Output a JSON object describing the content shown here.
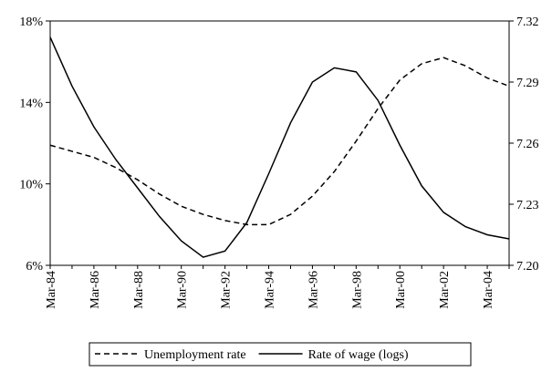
{
  "chart_data": {
    "type": "line",
    "categories": [
      "Mar-84",
      null,
      "Mar-86",
      null,
      "Mar-88",
      null,
      "Mar-90",
      null,
      "Mar-92",
      null,
      "Mar-94",
      null,
      "Mar-96",
      null,
      "Mar-98",
      null,
      "Mar-00",
      null,
      "Mar-02",
      null,
      "Mar-04",
      null
    ],
    "series": [
      {
        "name": "Unemployment rate",
        "color": "#000000",
        "line_style": "dashed",
        "values": [
          11.9,
          11.6,
          11.3,
          10.8,
          10.2,
          9.5,
          8.9,
          8.5,
          8.2,
          8.0,
          8.0,
          8.5,
          9.4,
          10.6,
          12.1,
          13.7,
          15.1,
          15.9,
          16.2,
          15.8,
          15.2,
          14.8
        ]
      },
      {
        "name": "Rate of wage (logs)",
        "color": "#000000",
        "line_style": "solid",
        "axis": "y2",
        "values": [
          7.312,
          7.288,
          7.268,
          7.252,
          7.238,
          7.224,
          7.212,
          7.204,
          7.207,
          7.221,
          7.245,
          7.27,
          7.29,
          7.297,
          7.295,
          7.281,
          7.259,
          7.239,
          7.226,
          7.219,
          7.215,
          7.213
        ]
      }
    ],
    "ylim": [
      6,
      18
    ],
    "yticks": [
      {
        "value": 6,
        "label": "6%"
      },
      {
        "value": 10,
        "label": "10%"
      },
      {
        "value": 14,
        "label": "14%"
      },
      {
        "value": 18,
        "label": "18%"
      }
    ],
    "y2lim": [
      7.2,
      7.32
    ],
    "y2ticks": [
      {
        "value": 7.2,
        "label": "7.20"
      },
      7.23,
      7.26,
      7.29,
      7.32
    ],
    "legend": "bottom"
  }
}
